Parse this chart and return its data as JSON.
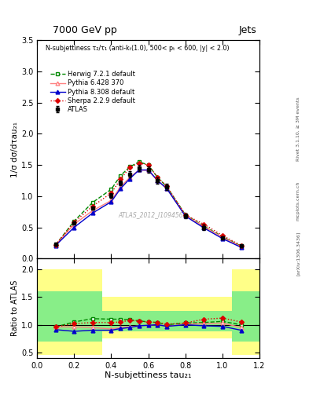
{
  "title_top": "7000 GeV pp",
  "title_right": "Jets",
  "right_label_1": "Rivet 3.1.10, ≥ 3M events",
  "right_label_2": "mcplots.cern.ch [arXiv:1306.3436]",
  "watermark": "ATLAS_2012_I1094564",
  "subplot_title": "N-subjettiness τ₂/τ₁ (anti-kₜ(1.0), 500< pₜ < 600, |y| < 2.0)",
  "ylabel_main": "1/σ dσ/dτau₂₁",
  "ylabel_ratio": "Ratio to ATLAS",
  "xlabel": "N-subjettiness tau₂₁",
  "ylim_main": [
    0,
    3.5
  ],
  "ylim_ratio": [
    0.4,
    2.2
  ],
  "yticks_main": [
    0,
    0.5,
    1.0,
    1.5,
    2.0,
    2.5,
    3.0,
    3.5
  ],
  "yticks_ratio": [
    0.5,
    1.0,
    1.5,
    2.0
  ],
  "xlim": [
    0,
    1.2
  ],
  "xticks": [
    0,
    0.5,
    1.0
  ],
  "x_values": [
    0.1,
    0.2,
    0.3,
    0.4,
    0.45,
    0.5,
    0.55,
    0.6,
    0.65,
    0.7,
    0.8,
    0.9,
    1.0,
    1.1
  ],
  "atlas_y": [
    0.23,
    0.57,
    0.81,
    1.01,
    1.21,
    1.35,
    1.45,
    1.43,
    1.25,
    1.15,
    0.68,
    0.5,
    0.33,
    0.2
  ],
  "atlas_err": [
    0.02,
    0.03,
    0.03,
    0.04,
    0.04,
    0.05,
    0.05,
    0.05,
    0.05,
    0.05,
    0.04,
    0.04,
    0.03,
    0.02
  ],
  "herwig_y": [
    0.22,
    0.6,
    0.9,
    1.11,
    1.33,
    1.47,
    1.55,
    1.5,
    1.3,
    1.15,
    0.7,
    0.52,
    0.35,
    0.2
  ],
  "pythia6_y": [
    0.22,
    0.55,
    0.77,
    0.93,
    1.15,
    1.3,
    1.42,
    1.41,
    1.25,
    1.12,
    0.69,
    0.51,
    0.34,
    0.19
  ],
  "pythia8_y": [
    0.21,
    0.5,
    0.73,
    0.91,
    1.12,
    1.28,
    1.42,
    1.42,
    1.25,
    1.12,
    0.68,
    0.49,
    0.32,
    0.18
  ],
  "sherpa_y": [
    0.22,
    0.58,
    0.84,
    1.05,
    1.27,
    1.46,
    1.53,
    1.5,
    1.3,
    1.16,
    0.7,
    0.55,
    0.37,
    0.21
  ],
  "herwig_ratio": [
    0.96,
    1.05,
    1.11,
    1.1,
    1.1,
    1.09,
    1.07,
    1.05,
    1.04,
    1.0,
    1.03,
    1.04,
    1.06,
    1.0
  ],
  "pythia6_ratio": [
    0.96,
    0.96,
    0.95,
    0.92,
    0.95,
    0.96,
    0.98,
    0.99,
    1.0,
    0.97,
    1.01,
    1.02,
    1.03,
    0.95
  ],
  "pythia8_ratio": [
    0.91,
    0.88,
    0.9,
    0.9,
    0.93,
    0.95,
    0.98,
    0.99,
    1.0,
    0.97,
    1.0,
    0.98,
    0.97,
    0.9
  ],
  "sherpa_ratio": [
    0.96,
    1.02,
    1.04,
    1.04,
    1.05,
    1.08,
    1.06,
    1.05,
    1.04,
    1.01,
    1.03,
    1.1,
    1.12,
    1.05
  ],
  "yellow_xedges": [
    0.0,
    0.15,
    0.35,
    0.55,
    0.85,
    1.05,
    1.2
  ],
  "yellow_lo": [
    0.45,
    0.45,
    0.75,
    0.75,
    0.75,
    0.45,
    0.45
  ],
  "yellow_hi": [
    2.0,
    2.0,
    1.5,
    1.5,
    1.5,
    2.0,
    2.0
  ],
  "green_xedges": [
    0.0,
    0.15,
    0.35,
    0.55,
    0.85,
    1.05,
    1.2
  ],
  "green_lo": [
    0.7,
    0.7,
    0.88,
    0.88,
    0.88,
    0.7,
    0.7
  ],
  "green_hi": [
    1.6,
    1.6,
    1.25,
    1.25,
    1.25,
    1.6,
    1.6
  ],
  "color_atlas": "#000000",
  "color_herwig": "#008800",
  "color_pythia6": "#ff8080",
  "color_pythia8": "#0000cc",
  "color_sherpa": "#dd0000",
  "color_yellow": "#ffff88",
  "color_green": "#88ee88"
}
